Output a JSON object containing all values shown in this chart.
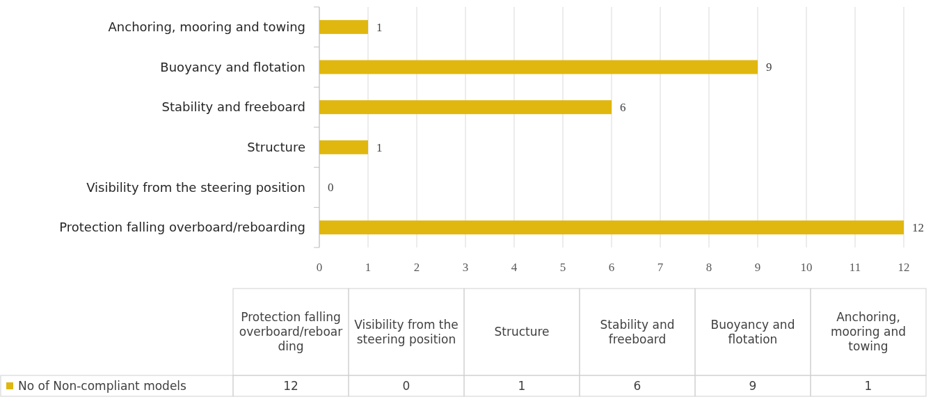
{
  "chart_data": [
    {
      "type": "bar",
      "orientation": "horizontal",
      "categories": [
        "Anchoring, mooring and towing",
        "Buoyancy and flotation",
        "Stability and freeboard",
        "Structure",
        "Visibility from the steering position",
        "Protection falling overboard/reboarding"
      ],
      "series": [
        {
          "color": "#e0b70e",
          "values": [
            1,
            9,
            6,
            1,
            0,
            12
          ]
        }
      ],
      "xlim": [
        0,
        12
      ],
      "xticks": [
        0,
        1,
        2,
        3,
        4,
        5,
        6,
        7,
        8,
        9,
        10,
        11,
        12
      ],
      "grid": "x",
      "data_labels": true
    },
    {
      "type": "other",
      "categories": [
        "Protection falling overboard/reboarding",
        "Visibility from the steering position",
        "Structure",
        "Stability and freeboard",
        "Buoyancy and flotation",
        "Anchoring, mooring and towing"
      ],
      "series": [
        {
          "name": "No of Non-compliant models",
          "color": "#e0b70e",
          "values": [
            12,
            0,
            1,
            6,
            9,
            1
          ]
        }
      ],
      "legend": "left",
      "data_labels": true
    }
  ]
}
